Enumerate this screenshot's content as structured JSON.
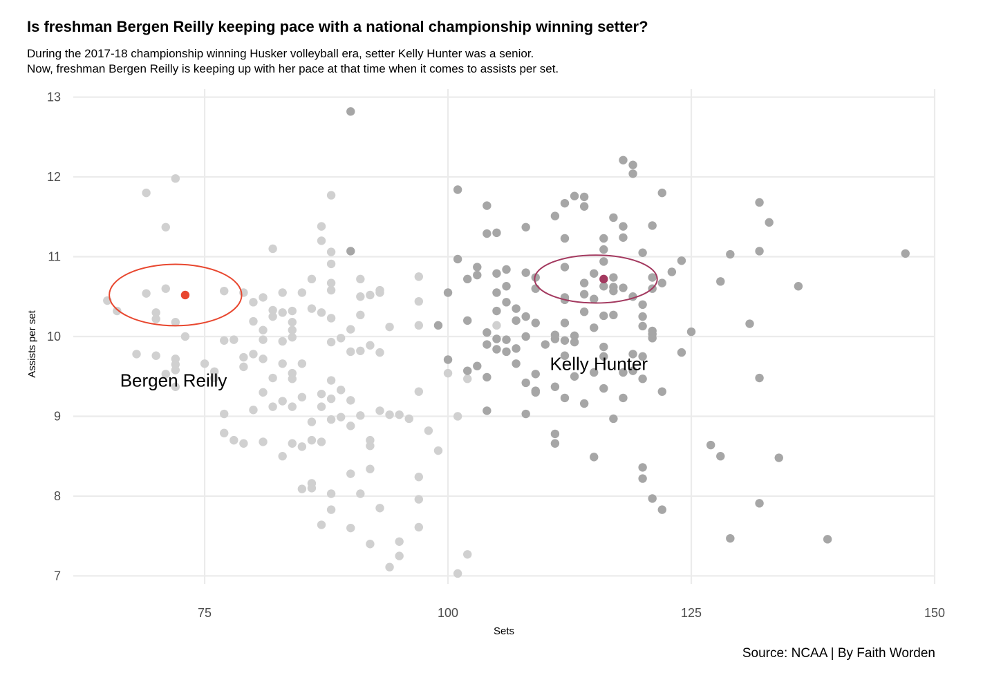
{
  "title": "Is freshman Bergen Reilly keeping pace with a national championship winning setter?",
  "subtitle": [
    "During the 2017-18 championship winning Husker volleyball era, setter Kelly Hunter was a senior.",
    "Now, freshman Bergen Reilly is keeping up with her pace at that time when it comes to assists per set."
  ],
  "caption": "Source: NCAA | By Faith Worden",
  "chart_data": {
    "type": "scatter",
    "xlabel": "Sets",
    "ylabel": "Assists per set",
    "xlim": [
      61.5,
      150
    ],
    "ylim": [
      6.9,
      13.1
    ],
    "x_ticks": [
      "75",
      "100",
      "125",
      "150"
    ],
    "y_ticks": [
      "7",
      "8",
      "9",
      "10",
      "11",
      "12",
      "13"
    ],
    "grid": true,
    "colors": {
      "current_season": "#d0d0d0",
      "championship_season": "#a6a6a6",
      "bergen_reilly": "#e8472f",
      "kelly_hunter": "#a3395f",
      "gridline": "#ebebeb"
    },
    "series": [
      {
        "group": "current",
        "points": [
          [
            65,
            10.45
          ],
          [
            66,
            10.32
          ],
          [
            68,
            9.78
          ],
          [
            69,
            10.54
          ],
          [
            69,
            11.8
          ],
          [
            70,
            10.3
          ],
          [
            70,
            10.22
          ],
          [
            70,
            9.76
          ],
          [
            71,
            10.6
          ],
          [
            71,
            11.37
          ],
          [
            71,
            9.53
          ],
          [
            72,
            11.98
          ],
          [
            72,
            10.18
          ],
          [
            72,
            9.72
          ],
          [
            72,
            9.65
          ],
          [
            72,
            9.58
          ],
          [
            72,
            9.37
          ],
          [
            73,
            10.0
          ],
          [
            75,
            9.66
          ],
          [
            76,
            9.56
          ],
          [
            76,
            9.48
          ],
          [
            77,
            10.57
          ],
          [
            77,
            9.95
          ],
          [
            77,
            9.03
          ],
          [
            77,
            8.79
          ],
          [
            78,
            9.96
          ],
          [
            78,
            8.7
          ],
          [
            79,
            10.55
          ],
          [
            79,
            9.74
          ],
          [
            79,
            9.62
          ],
          [
            79,
            8.66
          ],
          [
            80,
            10.43
          ],
          [
            80,
            10.19
          ],
          [
            80,
            9.78
          ],
          [
            80,
            9.08
          ],
          [
            81,
            10.49
          ],
          [
            81,
            10.08
          ],
          [
            81,
            9.96
          ],
          [
            81,
            9.72
          ],
          [
            81,
            9.3
          ],
          [
            81,
            8.68
          ],
          [
            82,
            11.1
          ],
          [
            82,
            10.33
          ],
          [
            82,
            10.25
          ],
          [
            82,
            9.48
          ],
          [
            82,
            9.12
          ],
          [
            83,
            10.55
          ],
          [
            83,
            10.3
          ],
          [
            83,
            9.94
          ],
          [
            83,
            9.66
          ],
          [
            83,
            9.19
          ],
          [
            83,
            8.5
          ],
          [
            84,
            10.32
          ],
          [
            84,
            10.18
          ],
          [
            84,
            10.08
          ],
          [
            84,
            9.99
          ],
          [
            84,
            9.54
          ],
          [
            84,
            9.47
          ],
          [
            84,
            9.12
          ],
          [
            84,
            8.66
          ],
          [
            85,
            10.55
          ],
          [
            85,
            9.66
          ],
          [
            85,
            9.24
          ],
          [
            85,
            8.62
          ],
          [
            85,
            8.09
          ],
          [
            86,
            10.72
          ],
          [
            86,
            10.35
          ],
          [
            86,
            8.93
          ],
          [
            86,
            8.7
          ],
          [
            86,
            8.16
          ],
          [
            86,
            8.1
          ],
          [
            87,
            11.38
          ],
          [
            87,
            11.2
          ],
          [
            87,
            10.3
          ],
          [
            87,
            9.28
          ],
          [
            87,
            9.12
          ],
          [
            87,
            8.68
          ],
          [
            87,
            7.64
          ],
          [
            88,
            11.77
          ],
          [
            88,
            11.06
          ],
          [
            88,
            10.91
          ],
          [
            88,
            10.67
          ],
          [
            88,
            10.58
          ],
          [
            88,
            10.23
          ],
          [
            88,
            9.93
          ],
          [
            88,
            9.45
          ],
          [
            88,
            9.22
          ],
          [
            88,
            8.96
          ],
          [
            88,
            8.03
          ],
          [
            88,
            7.83
          ],
          [
            89,
            9.98
          ],
          [
            89,
            9.33
          ],
          [
            89,
            8.99
          ],
          [
            90,
            10.09
          ],
          [
            90,
            9.81
          ],
          [
            90,
            9.2
          ],
          [
            90,
            8.88
          ],
          [
            90,
            8.28
          ],
          [
            90,
            7.6
          ],
          [
            91,
            10.72
          ],
          [
            91,
            10.5
          ],
          [
            91,
            10.27
          ],
          [
            91,
            9.82
          ],
          [
            91,
            9.01
          ],
          [
            91,
            8.03
          ],
          [
            92,
            10.52
          ],
          [
            92,
            9.89
          ],
          [
            92,
            8.7
          ],
          [
            92,
            8.63
          ],
          [
            92,
            8.34
          ],
          [
            92,
            7.4
          ],
          [
            93,
            10.58
          ],
          [
            93,
            10.55
          ],
          [
            93,
            9.8
          ],
          [
            93,
            9.07
          ],
          [
            93,
            7.85
          ],
          [
            94,
            10.12
          ],
          [
            94,
            9.02
          ],
          [
            94,
            7.11
          ],
          [
            95,
            9.02
          ],
          [
            95,
            7.43
          ],
          [
            95,
            7.25
          ],
          [
            96,
            8.97
          ],
          [
            97,
            10.75
          ],
          [
            97,
            10.44
          ],
          [
            97,
            10.14
          ],
          [
            97,
            9.31
          ],
          [
            97,
            8.24
          ],
          [
            97,
            7.96
          ],
          [
            97,
            7.61
          ],
          [
            98,
            8.82
          ],
          [
            99,
            8.57
          ],
          [
            100,
            9.54
          ],
          [
            101,
            9.0
          ],
          [
            101,
            7.03
          ],
          [
            102,
            9.47
          ],
          [
            102,
            7.27
          ],
          [
            105,
            10.14
          ]
        ]
      },
      {
        "group": "championship",
        "points": [
          [
            90,
            12.82
          ],
          [
            90,
            11.07
          ],
          [
            99,
            10.14
          ],
          [
            100,
            10.55
          ],
          [
            100,
            9.71
          ],
          [
            101,
            11.84
          ],
          [
            101,
            10.97
          ],
          [
            102,
            10.72
          ],
          [
            102,
            10.2
          ],
          [
            102,
            9.57
          ],
          [
            103,
            10.87
          ],
          [
            103,
            10.77
          ],
          [
            103,
            9.63
          ],
          [
            104,
            11.64
          ],
          [
            104,
            11.29
          ],
          [
            104,
            10.05
          ],
          [
            104,
            9.9
          ],
          [
            104,
            9.49
          ],
          [
            104,
            9.07
          ],
          [
            105,
            11.3
          ],
          [
            105,
            10.79
          ],
          [
            105,
            10.55
          ],
          [
            105,
            10.32
          ],
          [
            105,
            9.97
          ],
          [
            105,
            9.84
          ],
          [
            106,
            10.84
          ],
          [
            106,
            10.63
          ],
          [
            106,
            10.43
          ],
          [
            106,
            9.96
          ],
          [
            106,
            9.81
          ],
          [
            107,
            10.35
          ],
          [
            107,
            10.2
          ],
          [
            107,
            9.85
          ],
          [
            107,
            9.66
          ],
          [
            108,
            11.37
          ],
          [
            108,
            10.8
          ],
          [
            108,
            10.25
          ],
          [
            108,
            10.0
          ],
          [
            108,
            9.42
          ],
          [
            108,
            9.03
          ],
          [
            109,
            10.74
          ],
          [
            109,
            10.6
          ],
          [
            109,
            10.17
          ],
          [
            109,
            9.53
          ],
          [
            109,
            9.32
          ],
          [
            109,
            9.3
          ],
          [
            110,
            9.9
          ],
          [
            111,
            11.51
          ],
          [
            111,
            10.02
          ],
          [
            111,
            9.97
          ],
          [
            111,
            9.37
          ],
          [
            111,
            8.78
          ],
          [
            111,
            8.66
          ],
          [
            112,
            11.67
          ],
          [
            112,
            11.23
          ],
          [
            112,
            10.87
          ],
          [
            112,
            10.49
          ],
          [
            112,
            10.46
          ],
          [
            112,
            10.17
          ],
          [
            112,
            9.95
          ],
          [
            112,
            9.76
          ],
          [
            112,
            9.23
          ],
          [
            113,
            11.76
          ],
          [
            113,
            10.01
          ],
          [
            113,
            9.93
          ],
          [
            113,
            9.5
          ],
          [
            114,
            11.75
          ],
          [
            114,
            11.63
          ],
          [
            114,
            10.67
          ],
          [
            114,
            10.53
          ],
          [
            114,
            10.31
          ],
          [
            114,
            9.16
          ],
          [
            115,
            10.79
          ],
          [
            115,
            10.47
          ],
          [
            115,
            10.11
          ],
          [
            115,
            9.55
          ],
          [
            115,
            8.49
          ],
          [
            116,
            11.23
          ],
          [
            116,
            11.09
          ],
          [
            116,
            10.94
          ],
          [
            116,
            10.63
          ],
          [
            116,
            10.26
          ],
          [
            116,
            9.87
          ],
          [
            116,
            9.75
          ],
          [
            116,
            9.35
          ],
          [
            117,
            11.49
          ],
          [
            117,
            10.74
          ],
          [
            117,
            10.62
          ],
          [
            117,
            10.57
          ],
          [
            117,
            10.27
          ],
          [
            117,
            8.97
          ],
          [
            118,
            12.21
          ],
          [
            118,
            11.38
          ],
          [
            118,
            11.24
          ],
          [
            118,
            10.61
          ],
          [
            118,
            9.55
          ],
          [
            118,
            9.23
          ],
          [
            119,
            12.15
          ],
          [
            119,
            12.04
          ],
          [
            119,
            10.5
          ],
          [
            119,
            9.78
          ],
          [
            119,
            9.57
          ],
          [
            120,
            11.05
          ],
          [
            120,
            10.4
          ],
          [
            120,
            10.25
          ],
          [
            120,
            10.13
          ],
          [
            120,
            9.75
          ],
          [
            120,
            9.47
          ],
          [
            120,
            8.36
          ],
          [
            120,
            8.22
          ],
          [
            121,
            11.39
          ],
          [
            121,
            10.74
          ],
          [
            121,
            10.6
          ],
          [
            121,
            10.07
          ],
          [
            121,
            10.03
          ],
          [
            121,
            9.98
          ],
          [
            121,
            7.97
          ],
          [
            122,
            11.8
          ],
          [
            122,
            10.67
          ],
          [
            122,
            9.31
          ],
          [
            122,
            7.83
          ],
          [
            123,
            10.81
          ],
          [
            124,
            10.95
          ],
          [
            124,
            9.8
          ],
          [
            125,
            10.06
          ],
          [
            127,
            8.64
          ],
          [
            128,
            10.69
          ],
          [
            128,
            8.5
          ],
          [
            129,
            11.03
          ],
          [
            129,
            7.47
          ],
          [
            131,
            10.16
          ],
          [
            132,
            11.68
          ],
          [
            132,
            11.07
          ],
          [
            132,
            9.48
          ],
          [
            132,
            7.91
          ],
          [
            133,
            11.43
          ],
          [
            134,
            8.48
          ],
          [
            136,
            10.63
          ],
          [
            139,
            7.46
          ],
          [
            147,
            11.04
          ]
        ]
      },
      {
        "group": "highlight",
        "name": "Bergen Reilly",
        "points": [
          [
            73,
            10.52
          ]
        ]
      },
      {
        "group": "highlight",
        "name": "Kelly Hunter",
        "points": [
          [
            116,
            10.72
          ]
        ]
      }
    ],
    "annotations": [
      {
        "text": "Bergen Reilly",
        "x": 71.8,
        "y": 9.45
      },
      {
        "text": "Kelly Hunter",
        "x": 115.5,
        "y": 9.66
      }
    ],
    "ellipses": [
      {
        "series": "Bergen Reilly",
        "cx": 72,
        "cy": 10.52,
        "rx": 6.8,
        "ry": 0.385
      },
      {
        "series": "Kelly Hunter",
        "cx": 115.2,
        "cy": 10.72,
        "rx": 6.3,
        "ry": 0.3
      }
    ]
  }
}
